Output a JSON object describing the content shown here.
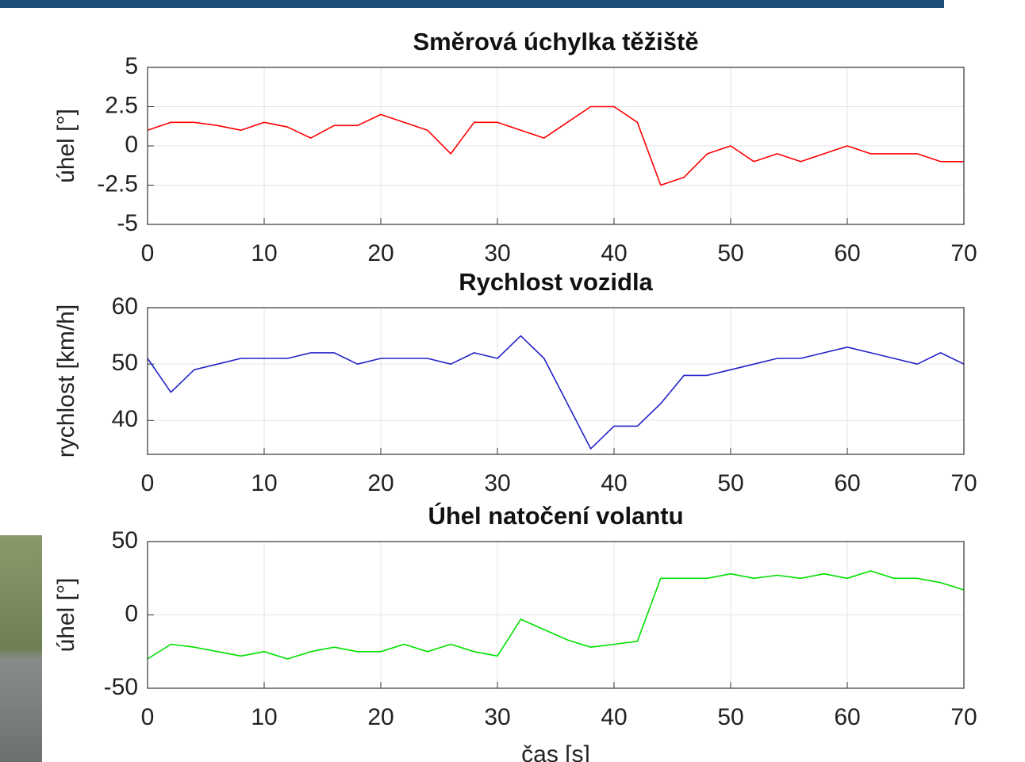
{
  "chart_data": [
    {
      "type": "line",
      "title": "Směrová úchylka těžiště",
      "ylabel": "úhel [°]",
      "color": "#ff0000",
      "grid": true,
      "x": [
        0,
        2,
        4,
        6,
        8,
        10,
        12,
        14,
        16,
        18,
        20,
        22,
        24,
        26,
        28,
        30,
        32,
        34,
        36,
        38,
        40,
        42,
        44,
        46,
        48,
        50,
        52,
        54,
        56,
        58,
        60,
        62,
        64,
        66,
        68,
        70
      ],
      "values": [
        1,
        1.5,
        1.5,
        1.3,
        1,
        1.5,
        1.2,
        0.5,
        1.3,
        1.3,
        2,
        1.5,
        1,
        -0.5,
        1.5,
        1.5,
        1,
        0.5,
        1.5,
        2.5,
        2.5,
        1.5,
        -2.5,
        -2,
        -0.5,
        0,
        -1,
        -0.5,
        -1,
        -0.5,
        0,
        -0.5,
        -0.5,
        -0.5,
        -1,
        -1
      ],
      "xlim": [
        0,
        70
      ],
      "xticks": [
        0,
        10,
        20,
        30,
        40,
        50,
        60,
        70
      ],
      "ylim": [
        -5,
        5
      ],
      "yticks": [
        -5,
        -2.5,
        0,
        2.5,
        5
      ]
    },
    {
      "type": "line",
      "title": "Rychlost vozidla",
      "ylabel": "rychlost [km/h]",
      "color": "#2222c8",
      "grid": true,
      "x": [
        0,
        2,
        4,
        6,
        8,
        10,
        12,
        14,
        16,
        18,
        20,
        22,
        24,
        26,
        28,
        30,
        32,
        34,
        36,
        38,
        40,
        42,
        44,
        46,
        48,
        50,
        52,
        54,
        56,
        58,
        60,
        62,
        64,
        66,
        68,
        70
      ],
      "values": [
        51,
        45,
        49,
        50,
        51,
        51,
        51,
        52,
        52,
        50,
        51,
        51,
        51,
        50,
        52,
        51,
        55,
        51,
        43,
        35,
        39,
        39,
        43,
        48,
        48,
        49,
        50,
        51,
        51,
        52,
        53,
        52,
        51,
        50,
        52,
        50
      ],
      "xlim": [
        0,
        70
      ],
      "xticks": [
        0,
        10,
        20,
        30,
        40,
        50,
        60,
        70
      ],
      "ylim": [
        34,
        60
      ],
      "yticks": [
        40,
        50,
        60
      ]
    },
    {
      "type": "line",
      "title": "Úhel natočení volantu",
      "ylabel": "úhel [°]",
      "xlabel": "čas [s]",
      "color": "#00e000",
      "grid": true,
      "x": [
        0,
        2,
        4,
        6,
        8,
        10,
        12,
        14,
        16,
        18,
        20,
        22,
        24,
        26,
        28,
        30,
        32,
        34,
        36,
        38,
        40,
        42,
        44,
        46,
        48,
        50,
        52,
        54,
        56,
        58,
        60,
        62,
        64,
        66,
        68,
        70
      ],
      "values": [
        -30,
        -20,
        -22,
        -25,
        -28,
        -25,
        -30,
        -25,
        -22,
        -25,
        -25,
        -20,
        -25,
        -20,
        -25,
        -28,
        -3,
        -10,
        -17,
        -22,
        -20,
        -18,
        25,
        25,
        25,
        28,
        25,
        27,
        25,
        28,
        25,
        30,
        25,
        25,
        22,
        17
      ],
      "xlim": [
        0,
        70
      ],
      "xticks": [
        0,
        10,
        20,
        30,
        40,
        50,
        60,
        70
      ],
      "ylim": [
        -50,
        50
      ],
      "yticks": [
        -50,
        0,
        50
      ]
    }
  ]
}
